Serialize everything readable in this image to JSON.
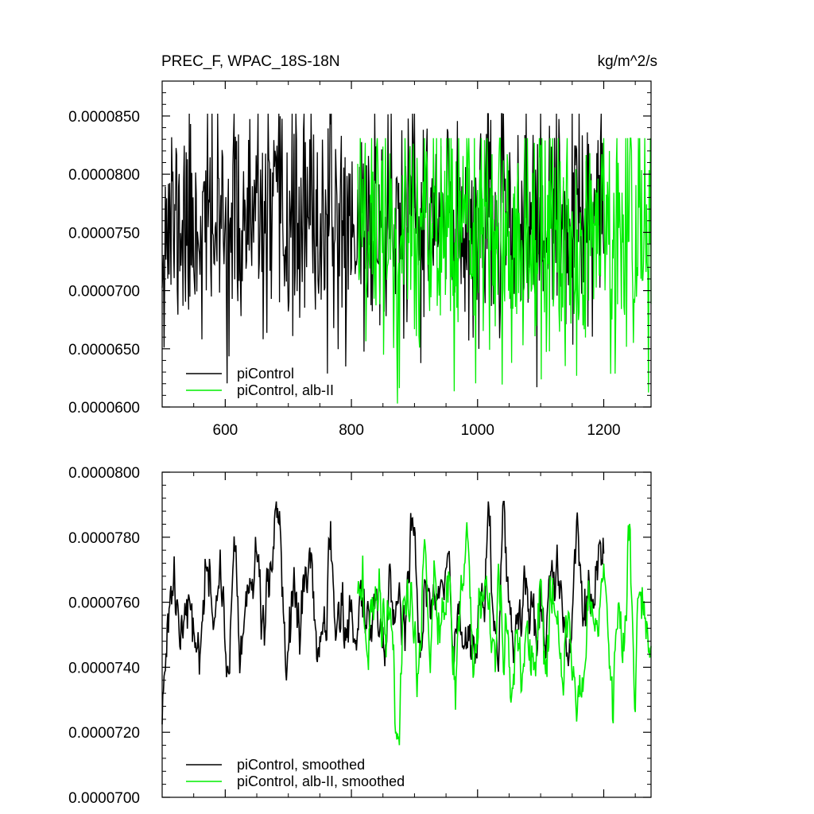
{
  "chart_data": [
    {
      "type": "line",
      "title": "PREC_F, WPAC_18S-18N",
      "units": "kg/m^2/s",
      "xlim": [
        500,
        1275
      ],
      "ylim": [
        6e-05,
        8.8e-05
      ],
      "xticks": [
        600,
        800,
        1000,
        1200
      ],
      "xticklabels": [
        "600",
        "800",
        "1000",
        "1200"
      ],
      "yticks": [
        6e-05,
        6.5e-05,
        7e-05,
        7.5e-05,
        8e-05,
        8.5e-05
      ],
      "yticklabels": [
        "0.0000600",
        "0.0000650",
        "0.0000700",
        "0.0000750",
        "0.0000800",
        "0.0000850"
      ],
      "grid": false,
      "legend": "bottom-left",
      "series": [
        {
          "name": "piControl",
          "color": "#000000",
          "x_start": 500,
          "x_end": 1200,
          "mean": 7.57e-05,
          "amplitude": 4.8e-06,
          "min": 6.17e-05,
          "max": 8.52e-05,
          "seed": 11
        },
        {
          "name": "piControl, alb-II",
          "color": "#00ee00",
          "x_start": 810,
          "x_end": 1275,
          "mean": 7.52e-05,
          "amplitude": 5.5e-06,
          "min": 6.03e-05,
          "max": 8.31e-05,
          "seed": 29
        }
      ]
    },
    {
      "type": "line",
      "title": "",
      "xlim": [
        500,
        1275
      ],
      "ylim": [
        7e-05,
        8e-05
      ],
      "xticks": [
        600,
        800,
        1000,
        1200
      ],
      "xticklabels": [],
      "yticks": [
        7e-05,
        7.2e-05,
        7.4e-05,
        7.6e-05,
        7.8e-05,
        8e-05
      ],
      "yticklabels": [
        "0.0000700",
        "0.0000720",
        "0.0000740",
        "0.0000760",
        "0.0000780",
        "0.0000800"
      ],
      "grid": false,
      "legend": "bottom-left",
      "series": [
        {
          "name": "piControl, smoothed",
          "color": "#000000",
          "x_start": 500,
          "x_end": 1200,
          "mean": 7.57e-05,
          "amplitude": 1.6e-06,
          "min": 7.13e-05,
          "max": 7.91e-05,
          "seed": 11
        },
        {
          "name": "piControl, alb-II, smoothed",
          "color": "#00ee00",
          "x_start": 810,
          "x_end": 1275,
          "mean": 7.54e-05,
          "amplitude": 1.8e-06,
          "min": 7.08e-05,
          "max": 7.99e-05,
          "seed": 29
        }
      ]
    }
  ]
}
